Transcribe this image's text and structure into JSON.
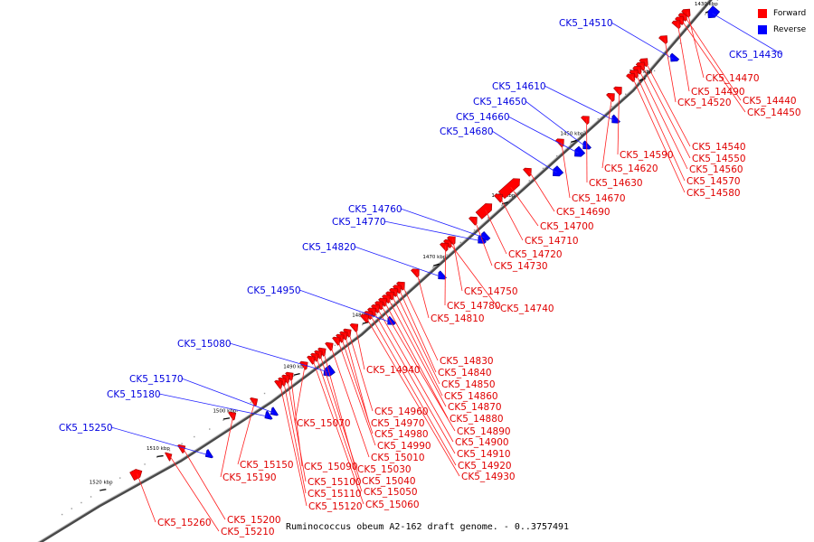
{
  "caption": "Ruminococcus obeum A2-162 draft genome. - 0..3757491",
  "legend": [
    {
      "label": "Forward",
      "color": "#ff0000"
    },
    {
      "label": "Reverse",
      "color": "#0000ff"
    }
  ],
  "colors": {
    "forward": "#ff0000",
    "reverse": "#0000ff",
    "backbone": "#808080"
  },
  "ticks": [
    "1430 kbp",
    "1440 kbp",
    "1450 kbp",
    "1460 kbp",
    "1470 kbp",
    "1480 kbp",
    "1490 kbp",
    "1500 kbp",
    "1510 kbp",
    "1520 kbp"
  ],
  "genes": [
    {
      "label": "CK5_14430",
      "strand": "reverse"
    },
    {
      "label": "CK5_14440",
      "strand": "forward"
    },
    {
      "label": "CK5_14450",
      "strand": "forward"
    },
    {
      "label": "CK5_14470",
      "strand": "forward"
    },
    {
      "label": "CK5_14490",
      "strand": "forward"
    },
    {
      "label": "CK5_14510",
      "strand": "reverse"
    },
    {
      "label": "CK5_14520",
      "strand": "forward"
    },
    {
      "label": "CK5_14540",
      "strand": "forward"
    },
    {
      "label": "CK5_14550",
      "strand": "forward"
    },
    {
      "label": "CK5_14560",
      "strand": "forward"
    },
    {
      "label": "CK5_14570",
      "strand": "forward"
    },
    {
      "label": "CK5_14580",
      "strand": "forward"
    },
    {
      "label": "CK5_14590",
      "strand": "forward"
    },
    {
      "label": "CK5_14610",
      "strand": "reverse"
    },
    {
      "label": "CK5_14620",
      "strand": "forward"
    },
    {
      "label": "CK5_14630",
      "strand": "forward"
    },
    {
      "label": "CK5_14650",
      "strand": "reverse"
    },
    {
      "label": "CK5_14660",
      "strand": "reverse"
    },
    {
      "label": "CK5_14670",
      "strand": "forward"
    },
    {
      "label": "CK5_14680",
      "strand": "reverse"
    },
    {
      "label": "CK5_14690",
      "strand": "forward"
    },
    {
      "label": "CK5_14700",
      "strand": "forward"
    },
    {
      "label": "CK5_14710",
      "strand": "forward"
    },
    {
      "label": "CK5_14720",
      "strand": "forward"
    },
    {
      "label": "CK5_14730",
      "strand": "forward"
    },
    {
      "label": "CK5_14740",
      "strand": "forward"
    },
    {
      "label": "CK5_14750",
      "strand": "forward"
    },
    {
      "label": "CK5_14760",
      "strand": "reverse"
    },
    {
      "label": "CK5_14770",
      "strand": "reverse"
    },
    {
      "label": "CK5_14780",
      "strand": "forward"
    },
    {
      "label": "CK5_14810",
      "strand": "forward"
    },
    {
      "label": "CK5_14820",
      "strand": "reverse"
    },
    {
      "label": "CK5_14830",
      "strand": "forward"
    },
    {
      "label": "CK5_14840",
      "strand": "forward"
    },
    {
      "label": "CK5_14850",
      "strand": "forward"
    },
    {
      "label": "CK5_14860",
      "strand": "forward"
    },
    {
      "label": "CK5_14870",
      "strand": "forward"
    },
    {
      "label": "CK5_14880",
      "strand": "forward"
    },
    {
      "label": "CK5_14890",
      "strand": "forward"
    },
    {
      "label": "CK5_14900",
      "strand": "forward"
    },
    {
      "label": "CK5_14910",
      "strand": "forward"
    },
    {
      "label": "CK5_14920",
      "strand": "forward"
    },
    {
      "label": "CK5_14930",
      "strand": "forward"
    },
    {
      "label": "CK5_14940",
      "strand": "forward"
    },
    {
      "label": "CK5_14950",
      "strand": "reverse"
    },
    {
      "label": "CK5_14960",
      "strand": "forward"
    },
    {
      "label": "CK5_14970",
      "strand": "forward"
    },
    {
      "label": "CK5_14980",
      "strand": "forward"
    },
    {
      "label": "CK5_14990",
      "strand": "forward"
    },
    {
      "label": "CK5_15010",
      "strand": "forward"
    },
    {
      "label": "CK5_15030",
      "strand": "forward"
    },
    {
      "label": "CK5_15040",
      "strand": "forward"
    },
    {
      "label": "CK5_15050",
      "strand": "forward"
    },
    {
      "label": "CK5_15060",
      "strand": "forward"
    },
    {
      "label": "CK5_15070",
      "strand": "forward"
    },
    {
      "label": "CK5_15080",
      "strand": "reverse"
    },
    {
      "label": "CK5_15090",
      "strand": "forward"
    },
    {
      "label": "CK5_15100",
      "strand": "forward"
    },
    {
      "label": "CK5_15110",
      "strand": "forward"
    },
    {
      "label": "CK5_15120",
      "strand": "forward"
    },
    {
      "label": "CK5_15150",
      "strand": "forward"
    },
    {
      "label": "CK5_15170",
      "strand": "reverse"
    },
    {
      "label": "CK5_15180",
      "strand": "reverse"
    },
    {
      "label": "CK5_15190",
      "strand": "forward"
    },
    {
      "label": "CK5_15200",
      "strand": "forward"
    },
    {
      "label": "CK5_15210",
      "strand": "forward"
    },
    {
      "label": "CK5_15250",
      "strand": "reverse"
    },
    {
      "label": "CK5_15260",
      "strand": "forward"
    }
  ]
}
